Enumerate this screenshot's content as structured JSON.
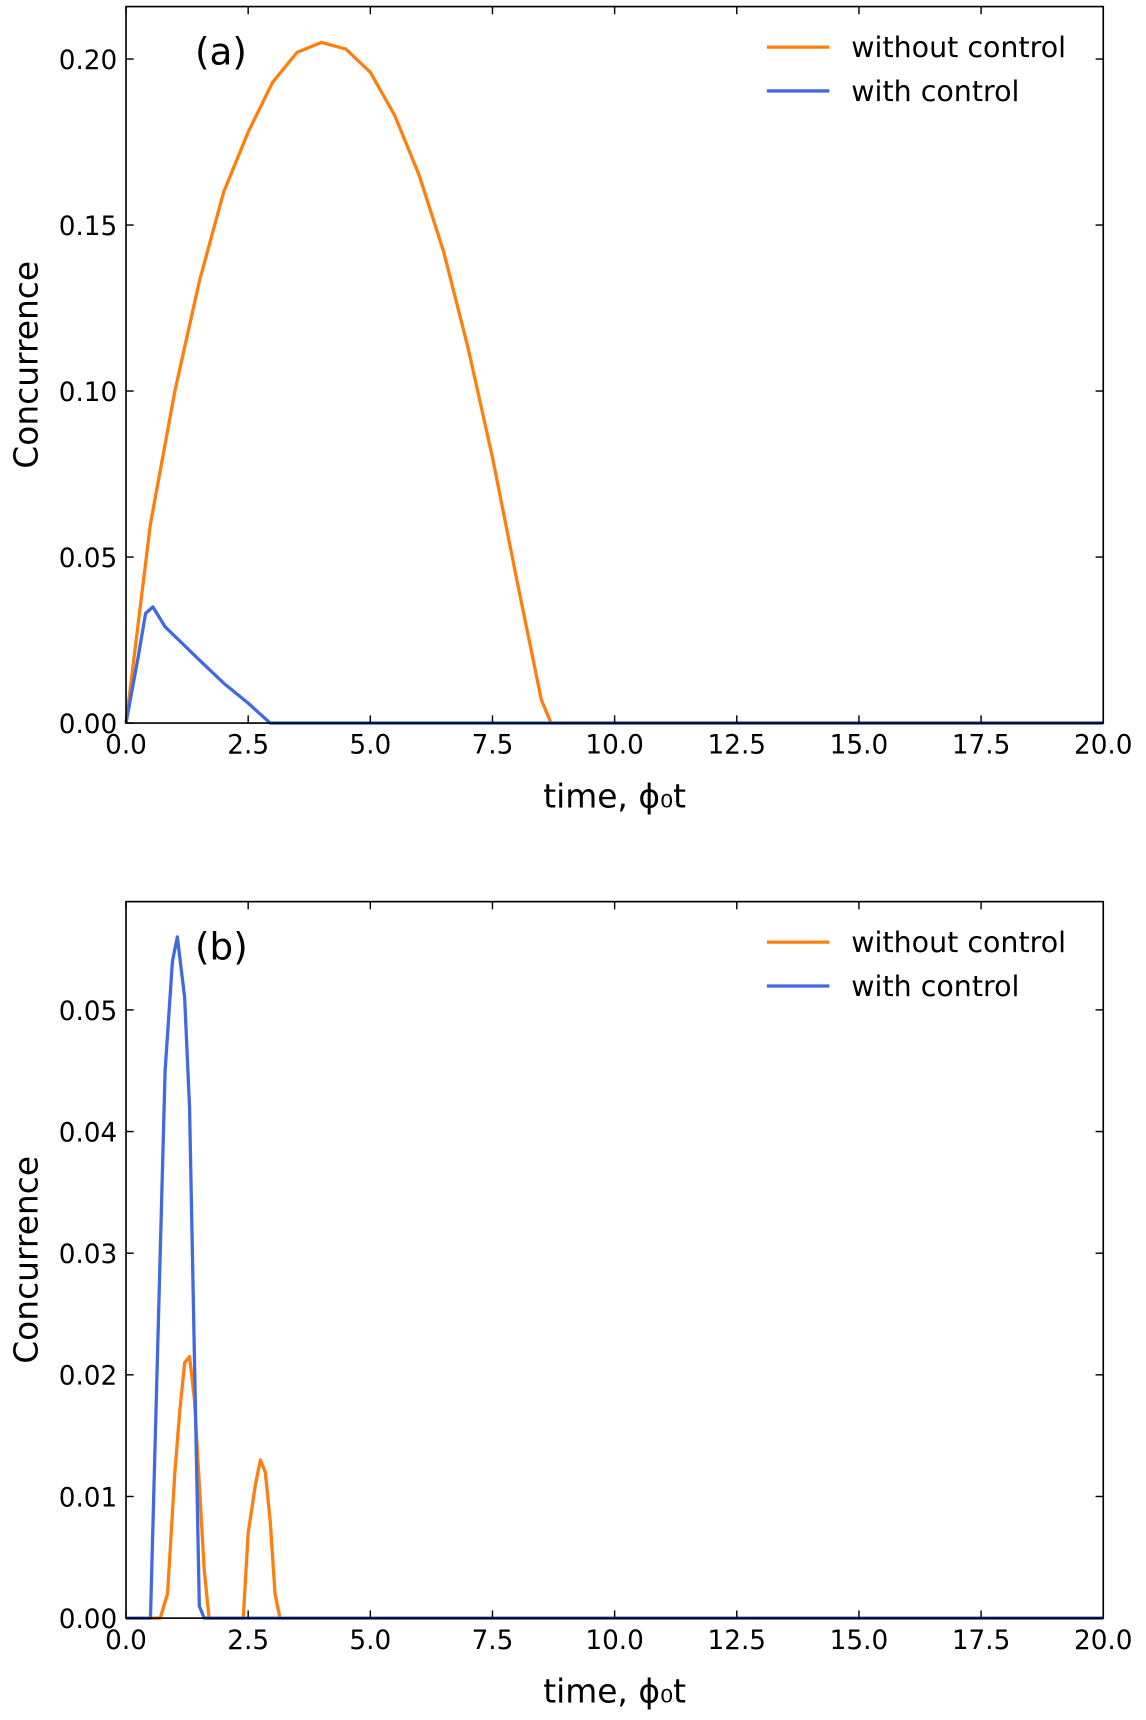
{
  "chart_data": [
    {
      "type": "line",
      "panel_label": "(a)",
      "xlabel": "time, ϕ₀t",
      "ylabel": "Concurrence",
      "xlim": [
        0,
        20
      ],
      "ylim": [
        0,
        0.2158
      ],
      "xticks": [
        {
          "value": 0,
          "label": "0.0"
        },
        {
          "value": 2.5,
          "label": "2.5"
        },
        {
          "value": 5,
          "label": "5.0"
        },
        {
          "value": 7.5,
          "label": "7.5"
        },
        {
          "value": 10,
          "label": "10.0"
        },
        {
          "value": 12.5,
          "label": "12.5"
        },
        {
          "value": 15,
          "label": "15.0"
        },
        {
          "value": 17.5,
          "label": "17.5"
        },
        {
          "value": 20,
          "label": "20.0"
        }
      ],
      "yticks": [
        {
          "value": 0,
          "label": "0.00"
        },
        {
          "value": 0.05,
          "label": "0.05"
        },
        {
          "value": 0.1,
          "label": "0.10"
        },
        {
          "value": 0.15,
          "label": "0.15"
        },
        {
          "value": 0.2,
          "label": "0.20"
        }
      ],
      "legend": "upper right",
      "series": [
        {
          "name": "without control",
          "color": "#ff7f0e",
          "x": [
            0,
            0.5,
            1,
            1.5,
            2,
            2.5,
            3,
            3.5,
            4,
            4.5,
            5,
            5.5,
            6,
            6.5,
            7,
            7.5,
            8,
            8.5,
            8.7,
            20
          ],
          "values": [
            0,
            0.06,
            0.1,
            0.133,
            0.16,
            0.178,
            0.193,
            0.202,
            0.205,
            0.203,
            0.196,
            0.183,
            0.165,
            0.142,
            0.113,
            0.08,
            0.043,
            0.007,
            0,
            0
          ]
        },
        {
          "name": "with control",
          "color": "#4169e1",
          "x": [
            0,
            0.25,
            0.4,
            0.55,
            0.8,
            1.5,
            2,
            2.5,
            2.95,
            20
          ],
          "values": [
            0,
            0.02,
            0.033,
            0.035,
            0.029,
            0.019,
            0.012,
            0.006,
            0,
            0
          ]
        }
      ]
    },
    {
      "type": "line",
      "panel_label": "(b)",
      "xlabel": "time, ϕ₀t",
      "ylabel": "Concurrence",
      "xlim": [
        0,
        20
      ],
      "ylim": [
        0,
        0.0589
      ],
      "xticks": [
        {
          "value": 0,
          "label": "0.0"
        },
        {
          "value": 2.5,
          "label": "2.5"
        },
        {
          "value": 5,
          "label": "5.0"
        },
        {
          "value": 7.5,
          "label": "7.5"
        },
        {
          "value": 10,
          "label": "10.0"
        },
        {
          "value": 12.5,
          "label": "12.5"
        },
        {
          "value": 15,
          "label": "15.0"
        },
        {
          "value": 17.5,
          "label": "17.5"
        },
        {
          "value": 20,
          "label": "20.0"
        }
      ],
      "yticks": [
        {
          "value": 0,
          "label": "0.00"
        },
        {
          "value": 0.01,
          "label": "0.01"
        },
        {
          "value": 0.02,
          "label": "0.02"
        },
        {
          "value": 0.03,
          "label": "0.03"
        },
        {
          "value": 0.04,
          "label": "0.04"
        },
        {
          "value": 0.05,
          "label": "0.05"
        }
      ],
      "legend": "upper right",
      "series": [
        {
          "name": "without control",
          "color": "#ff7f0e",
          "x": [
            0,
            0.7,
            0.85,
            1,
            1.1,
            1.2,
            1.3,
            1.4,
            1.6,
            1.7,
            2.4,
            2.5,
            2.65,
            2.75,
            2.85,
            2.95,
            3.05,
            3.15,
            20
          ],
          "values": [
            0,
            0,
            0.002,
            0.012,
            0.017,
            0.021,
            0.0215,
            0.018,
            0.004,
            0,
            0,
            0.007,
            0.011,
            0.013,
            0.012,
            0.008,
            0.002,
            0,
            0
          ]
        },
        {
          "name": "with control",
          "color": "#4169e1",
          "x": [
            0,
            0.5,
            0.8,
            0.95,
            1.05,
            1.2,
            1.3,
            1.5,
            1.6,
            20
          ],
          "values": [
            0,
            0,
            0.045,
            0.054,
            0.056,
            0.051,
            0.042,
            0.001,
            0,
            0
          ]
        }
      ]
    }
  ]
}
